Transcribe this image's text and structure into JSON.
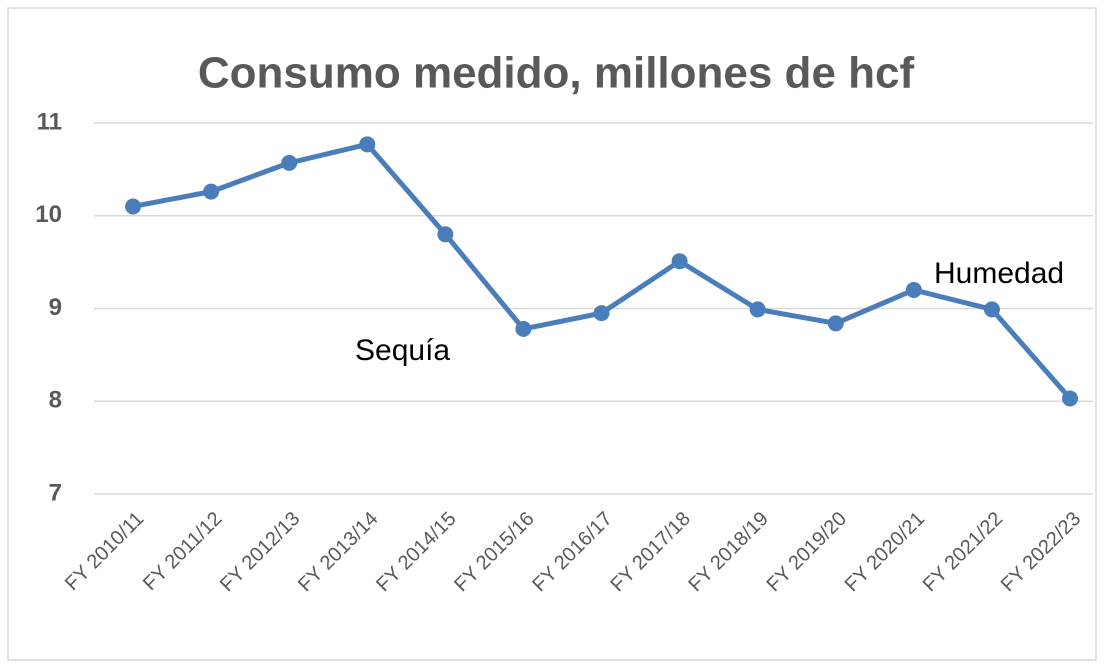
{
  "chart_data": {
    "type": "line",
    "title": "Consumo medido, millones de hcf",
    "categories": [
      "FY 2010/11",
      "FY 2011/12",
      "FY 2012/13",
      "FY 2013/14",
      "FY 2014/15",
      "FY 2015/16",
      "FY 2016/17",
      "FY 2017/18",
      "FY 2018/19",
      "FY 2019/20",
      "FY 2020/21",
      "FY 2021/22",
      "FY 2022/23"
    ],
    "series": [
      {
        "name": "Consumo medido",
        "color": "#4a7ebb",
        "values": [
          10.1,
          10.26,
          10.57,
          10.77,
          9.8,
          8.78,
          8.95,
          9.51,
          8.99,
          8.84,
          9.2,
          8.99,
          8.03
        ]
      }
    ],
    "ylim": [
      7,
      11
    ],
    "yticks": [
      7,
      8,
      9,
      10,
      11
    ],
    "grid": true,
    "annotations": [
      "Sequía",
      "Humedad"
    ]
  }
}
